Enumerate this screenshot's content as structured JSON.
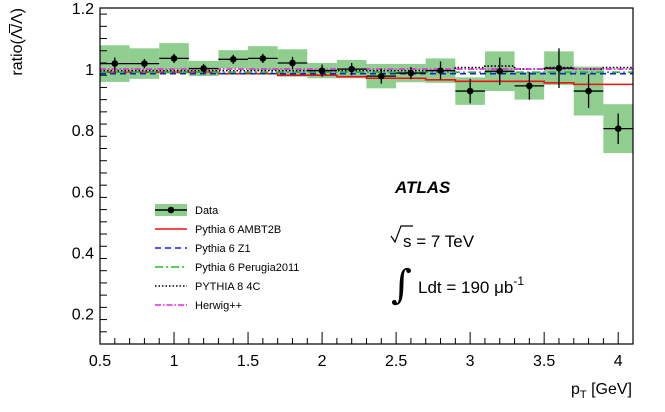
{
  "chart_data": {
    "type": "scatter",
    "title": "",
    "xlabel": "p",
    "xlabel_sub": "T",
    "xlabel_unit": " [GeV]",
    "ylabel": "ratio(Λ̅/Λ)",
    "xlim": [
      0.5,
      4.1
    ],
    "ylim": [
      0.1,
      1.2
    ],
    "x_ticks": [
      0.5,
      1,
      1.5,
      2,
      2.5,
      3,
      3.5,
      4
    ],
    "x_tick_labels": [
      "0.5",
      "1",
      "1.5",
      "2",
      "2.5",
      "3",
      "3.5",
      "4"
    ],
    "y_ticks": [
      0.2,
      0.4,
      0.6,
      0.8,
      1,
      1.2
    ],
    "y_tick_labels": [
      "0.2",
      "0.4",
      "0.6",
      "0.8",
      "1",
      "1.2"
    ],
    "bins": [
      0.5,
      0.7,
      0.9,
      1.1,
      1.3,
      1.5,
      1.7,
      1.9,
      2.1,
      2.3,
      2.5,
      2.7,
      2.9,
      3.1,
      3.3,
      3.5,
      3.7,
      3.9,
      4.1
    ],
    "data": {
      "name": "Data",
      "x": [
        0.6,
        0.8,
        1.0,
        1.2,
        1.4,
        1.6,
        1.8,
        2.0,
        2.2,
        2.4,
        2.6,
        2.8,
        3.0,
        3.2,
        3.4,
        3.6,
        3.8,
        4.0
      ],
      "y": [
        1.018,
        1.018,
        1.035,
        1.002,
        1.032,
        1.035,
        1.02,
        0.995,
        1.0,
        0.977,
        0.987,
        0.995,
        0.928,
        0.993,
        0.945,
        1.003,
        0.928,
        0.805
      ],
      "stat_err": [
        0.02,
        0.015,
        0.015,
        0.015,
        0.015,
        0.015,
        0.02,
        0.02,
        0.02,
        0.025,
        0.02,
        0.03,
        0.04,
        0.045,
        0.045,
        0.065,
        0.055,
        0.05
      ],
      "syst_err": [
        0.06,
        0.05,
        0.05,
        0.025,
        0.03,
        0.04,
        0.045,
        0.025,
        0.03,
        0.04,
        0.03,
        0.04,
        0.045,
        0.065,
        0.045,
        0.055,
        0.08,
        0.08
      ],
      "color": "#000000",
      "band_color": "#8fce8f"
    },
    "series": [
      {
        "name": "Pythia 6 AMBT2B",
        "color": "#ee1111",
        "dash": "",
        "values": [
          0.99,
          0.99,
          0.99,
          0.99,
          0.985,
          0.985,
          0.98,
          0.98,
          0.975,
          0.97,
          0.97,
          0.965,
          0.96,
          0.96,
          0.96,
          0.955,
          0.95,
          0.95
        ]
      },
      {
        "name": "Pythia 6 Z1",
        "color": "#1a1aee",
        "dash": "6,4",
        "values": [
          0.985,
          0.985,
          0.985,
          0.985,
          0.985,
          0.985,
          0.985,
          0.985,
          0.985,
          0.985,
          0.985,
          0.985,
          0.985,
          0.985,
          0.985,
          0.985,
          0.985,
          0.985
        ]
      },
      {
        "name": "Pythia 6 Perugia2011",
        "color": "#22bb22",
        "dash": "8,3,2,3",
        "values": [
          0.99,
          0.99,
          0.99,
          0.99,
          0.99,
          0.99,
          0.99,
          0.99,
          0.99,
          0.99,
          0.99,
          0.99,
          0.99,
          0.99,
          0.99,
          0.99,
          0.99,
          0.99
        ]
      },
      {
        "name": "PYTHIA 8 4C",
        "color": "#000000",
        "dash": "1.5,2",
        "values": [
          0.995,
          0.995,
          0.995,
          0.995,
          0.995,
          0.995,
          0.995,
          0.995,
          0.995,
          0.995,
          0.995,
          0.995,
          1.005,
          1.01,
          1.0,
          1.005,
          1.0,
          1.005
        ]
      },
      {
        "name": "Herwig++",
        "color": "#ee22ee",
        "dash": "6,2,1.5,2",
        "values": [
          1.0,
          1.0,
          1.0,
          1.0,
          1.0,
          1.0,
          1.0,
          1.0,
          1.0,
          1.0,
          1.0,
          1.0,
          1.0,
          1.0,
          1.0,
          1.0,
          1.0,
          1.0
        ]
      }
    ],
    "legend_position": "bottom-left",
    "annotations": {
      "experiment": "ATLAS",
      "energy": "s = 7 TeV",
      "lumi_prefix": "Ldt = 190 ",
      "lumi_unit": "μb",
      "lumi_exp": "-1"
    },
    "grid": false
  }
}
